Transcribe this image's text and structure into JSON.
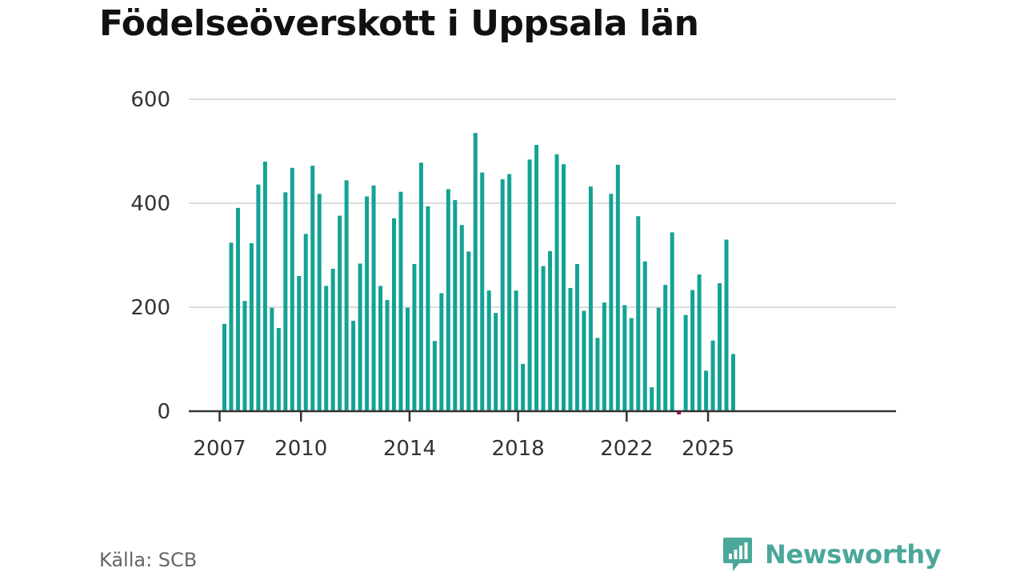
{
  "chart_data": {
    "type": "bar",
    "title": "Födelseöverskott i Uppsala län",
    "xlabel": "",
    "ylabel": "",
    "ylim": [
      0,
      600
    ],
    "yticks": [
      0,
      200,
      400,
      600
    ],
    "xticks": [
      "2007",
      "2010",
      "2014",
      "2018",
      "2022",
      "2025"
    ],
    "grid": true,
    "colors": {
      "positive": "#13a394",
      "negative": "#9e1446",
      "grid": "#dddddd",
      "axis": "#333333"
    },
    "x_start": {
      "year": 2007,
      "quarter": 1
    },
    "values": [
      168,
      324,
      391,
      212,
      323,
      436,
      480,
      199,
      160,
      421,
      468,
      260,
      341,
      472,
      418,
      241,
      274,
      376,
      444,
      174,
      284,
      413,
      434,
      241,
      214,
      371,
      422,
      199,
      283,
      478,
      394,
      135,
      227,
      427,
      406,
      358,
      307,
      535,
      459,
      232,
      189,
      446,
      456,
      232,
      91,
      484,
      512,
      279,
      308,
      494,
      475,
      237,
      283,
      193,
      432,
      141,
      209,
      418,
      474,
      204,
      179,
      375,
      288,
      46,
      199,
      243,
      344,
      -6,
      185,
      233,
      263,
      78,
      136,
      246,
      330,
      110
    ]
  },
  "source": "Källa: SCB",
  "brand": {
    "name": "Newsworthy",
    "icon": "newsworthy-logo-icon",
    "color": "#4aa79a"
  }
}
